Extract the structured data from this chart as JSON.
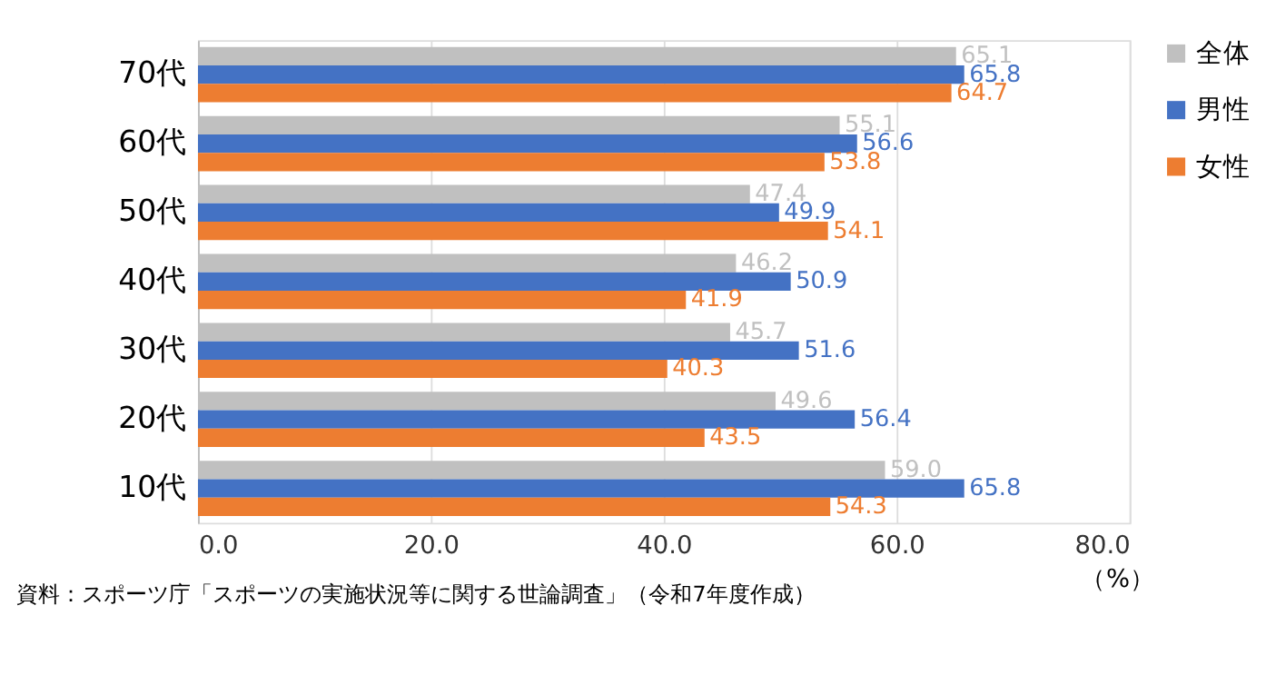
{
  "chart_data": {
    "type": "bar",
    "orientation": "horizontal",
    "categories": [
      "70代",
      "60代",
      "50代",
      "40代",
      "30代",
      "20代",
      "10代"
    ],
    "series": [
      {
        "name": "全体",
        "color": "#c0c0c0",
        "values": [
          65.1,
          55.1,
          47.4,
          46.2,
          45.7,
          49.6,
          59.0
        ],
        "value_labels": [
          "65.1",
          "55.1",
          "47.4",
          "46.2",
          "45.7",
          "49.6",
          "59.0"
        ]
      },
      {
        "name": "男性",
        "color": "#4472c4",
        "values": [
          65.8,
          56.6,
          49.9,
          50.9,
          51.6,
          56.4,
          65.8
        ],
        "value_labels": [
          "65.8",
          "56.6",
          "49.9",
          "50.9",
          "51.6",
          "56.4",
          "65.8"
        ]
      },
      {
        "name": "女性",
        "color": "#ed7d31",
        "values": [
          64.7,
          53.8,
          54.1,
          41.9,
          40.3,
          43.5,
          54.3
        ],
        "value_labels": [
          "64.7",
          "53.8",
          "54.1",
          "41.9",
          "40.3",
          "43.5",
          "54.3"
        ]
      }
    ],
    "xlim": [
      0,
      80
    ],
    "xticks": [
      {
        "value": 0,
        "label": "0.0"
      },
      {
        "value": 20,
        "label": "20.0"
      },
      {
        "value": 40,
        "label": "40.0"
      },
      {
        "value": 60,
        "label": "60.0"
      },
      {
        "value": 80,
        "label": "80.0"
      }
    ],
    "xlabel": "（%）",
    "grid": "x",
    "legend": "right",
    "annotations": [
      "資料：スポーツ庁「スポーツの実施状況等に関する世論調査」（令和7年度作成）"
    ]
  }
}
